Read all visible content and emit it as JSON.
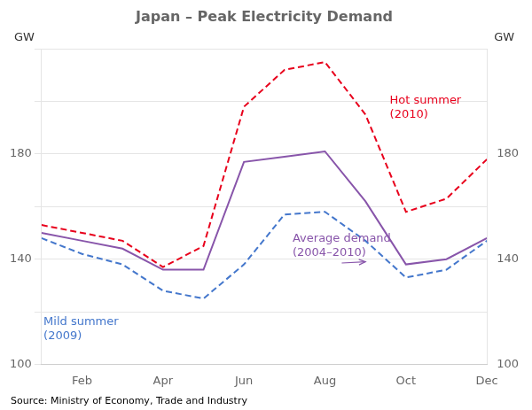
{
  "chart_data": {
    "type": "line",
    "title": "Japan – Peak Electricity Demand",
    "ylabel": "GW",
    "y2label": "GW",
    "source": "Source: Ministry of Economy, Trade and Industry",
    "x": [
      1,
      2,
      3,
      4,
      5,
      6,
      7,
      8,
      9,
      10,
      11,
      12
    ],
    "xlim": [
      1,
      12
    ],
    "xticks": [
      {
        "value": 2,
        "label": "Feb"
      },
      {
        "value": 4,
        "label": "Apr"
      },
      {
        "value": 6,
        "label": "Jun"
      },
      {
        "value": 8,
        "label": "Aug"
      },
      {
        "value": 10,
        "label": "Oct"
      },
      {
        "value": 12,
        "label": "Dec"
      }
    ],
    "ylim": [
      100,
      220
    ],
    "yticks": [
      100,
      {
        "value": 120,
        "label": ""
      },
      140,
      {
        "value": 160,
        "label": ""
      },
      180,
      {
        "value": 200,
        "label": ""
      },
      {
        "value": 220,
        "label": ""
      }
    ],
    "y2lim": [
      100,
      220
    ],
    "y2ticks": [
      100,
      {
        "value": 120,
        "label": ""
      },
      140,
      {
        "value": 160,
        "label": ""
      },
      180,
      {
        "value": 200,
        "label": ""
      },
      {
        "value": 220,
        "label": ""
      }
    ],
    "grid": "y",
    "series": [
      {
        "color": "#e8001c",
        "line_style": "dashed",
        "values": [
          153,
          150,
          147,
          137,
          145,
          198,
          212,
          215,
          195,
          158,
          163,
          178
        ]
      },
      {
        "color": "#4477cc",
        "line_style": "dashed",
        "values": [
          148,
          142,
          138,
          128,
          125,
          138,
          157,
          158,
          147,
          133,
          136,
          147
        ]
      },
      {
        "color": "#8855aa",
        "line_style": "solid",
        "values": [
          150,
          147,
          144,
          136,
          136,
          177,
          179,
          181,
          162,
          138,
          140,
          148
        ]
      }
    ],
    "annotations": [
      {
        "text": "Hot summer\n(2010)",
        "x": 9.6,
        "y": 197,
        "color": "#e8001c"
      },
      {
        "text": "Mild summer\n(2009)",
        "x": 1.05,
        "y": 113,
        "color": "#4477cc"
      },
      {
        "text": "Average demand\n(2004–2010)",
        "x": 7.2,
        "y": 150,
        "arrow_x": 9.0,
        "arrow_y": 139,
        "color": "#8855aa"
      }
    ]
  }
}
